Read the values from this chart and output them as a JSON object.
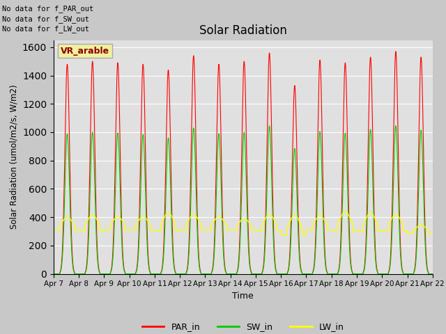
{
  "title": "Solar Radiation",
  "ylabel": "Solar Radiation (umol/m2/s, W/m2)",
  "xlabel": "Time",
  "fig_facecolor": "#c8c8c8",
  "ax_facecolor": "#e0e0e0",
  "annotations": [
    "No data for f_PAR_out",
    "No data for f_SW_out",
    "No data for f_LW_out"
  ],
  "vr_label": "VR_arable",
  "legend_labels": [
    "PAR_in",
    "SW_in",
    "LW_in"
  ],
  "line_colors": {
    "PAR_in": "red",
    "SW_in": "#00cc00",
    "LW_in": "yellow"
  },
  "ylim": [
    0,
    1650
  ],
  "yticks": [
    0,
    200,
    400,
    600,
    800,
    1000,
    1200,
    1400,
    1600
  ],
  "num_days": 15,
  "PAR_peaks": [
    1480,
    1500,
    1490,
    1480,
    1440,
    1540,
    1480,
    1500,
    1560,
    1330,
    1510,
    1490,
    1530,
    1570,
    1530,
    1530
  ],
  "SW_peaks": [
    990,
    1000,
    995,
    985,
    960,
    1030,
    990,
    1000,
    1045,
    885,
    1005,
    995,
    1020,
    1045,
    1015,
    1015
  ],
  "LW_daytime_peaks": [
    400,
    415,
    405,
    405,
    430,
    420,
    405,
    390,
    420,
    415,
    410,
    440,
    430,
    420,
    345,
    340
  ],
  "LW_nighttime": [
    310,
    305,
    310,
    310,
    305,
    310,
    310,
    310,
    305,
    275,
    310,
    305,
    300,
    305,
    285,
    285
  ],
  "figsize": [
    6.4,
    4.8
  ],
  "dpi": 100
}
